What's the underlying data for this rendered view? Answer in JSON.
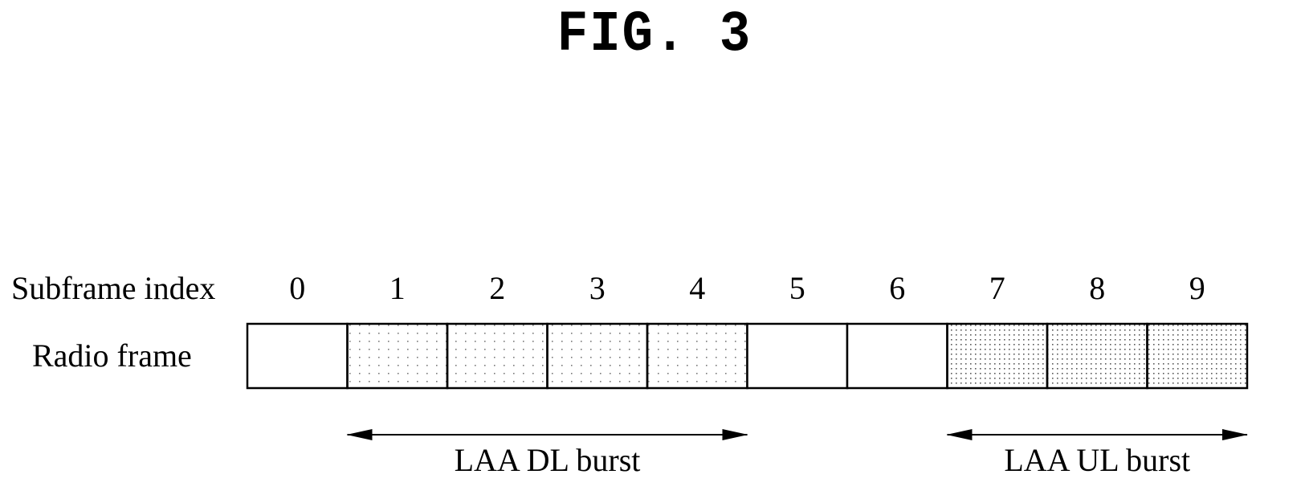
{
  "figure_title": "FIG. 3",
  "row_labels": {
    "subframe_index": "Subframe index",
    "radio_frame": "Radio frame"
  },
  "subframes": [
    {
      "index": "0",
      "type": "plain"
    },
    {
      "index": "1",
      "type": "dl"
    },
    {
      "index": "2",
      "type": "dl"
    },
    {
      "index": "3",
      "type": "dl"
    },
    {
      "index": "4",
      "type": "dl"
    },
    {
      "index": "5",
      "type": "plain"
    },
    {
      "index": "6",
      "type": "plain"
    },
    {
      "index": "7",
      "type": "ul"
    },
    {
      "index": "8",
      "type": "ul"
    },
    {
      "index": "9",
      "type": "ul"
    }
  ],
  "bursts": [
    {
      "label": "LAA DL burst",
      "from_subframe": 1,
      "to_subframe": 4
    },
    {
      "label": "LAA UL burst",
      "from_subframe": 7,
      "to_subframe": 9
    }
  ],
  "colors": {
    "line": "#000000",
    "background": "#ffffff",
    "dl_dots": "#7a7a7a",
    "ul_dots": "#5a5a5a"
  }
}
